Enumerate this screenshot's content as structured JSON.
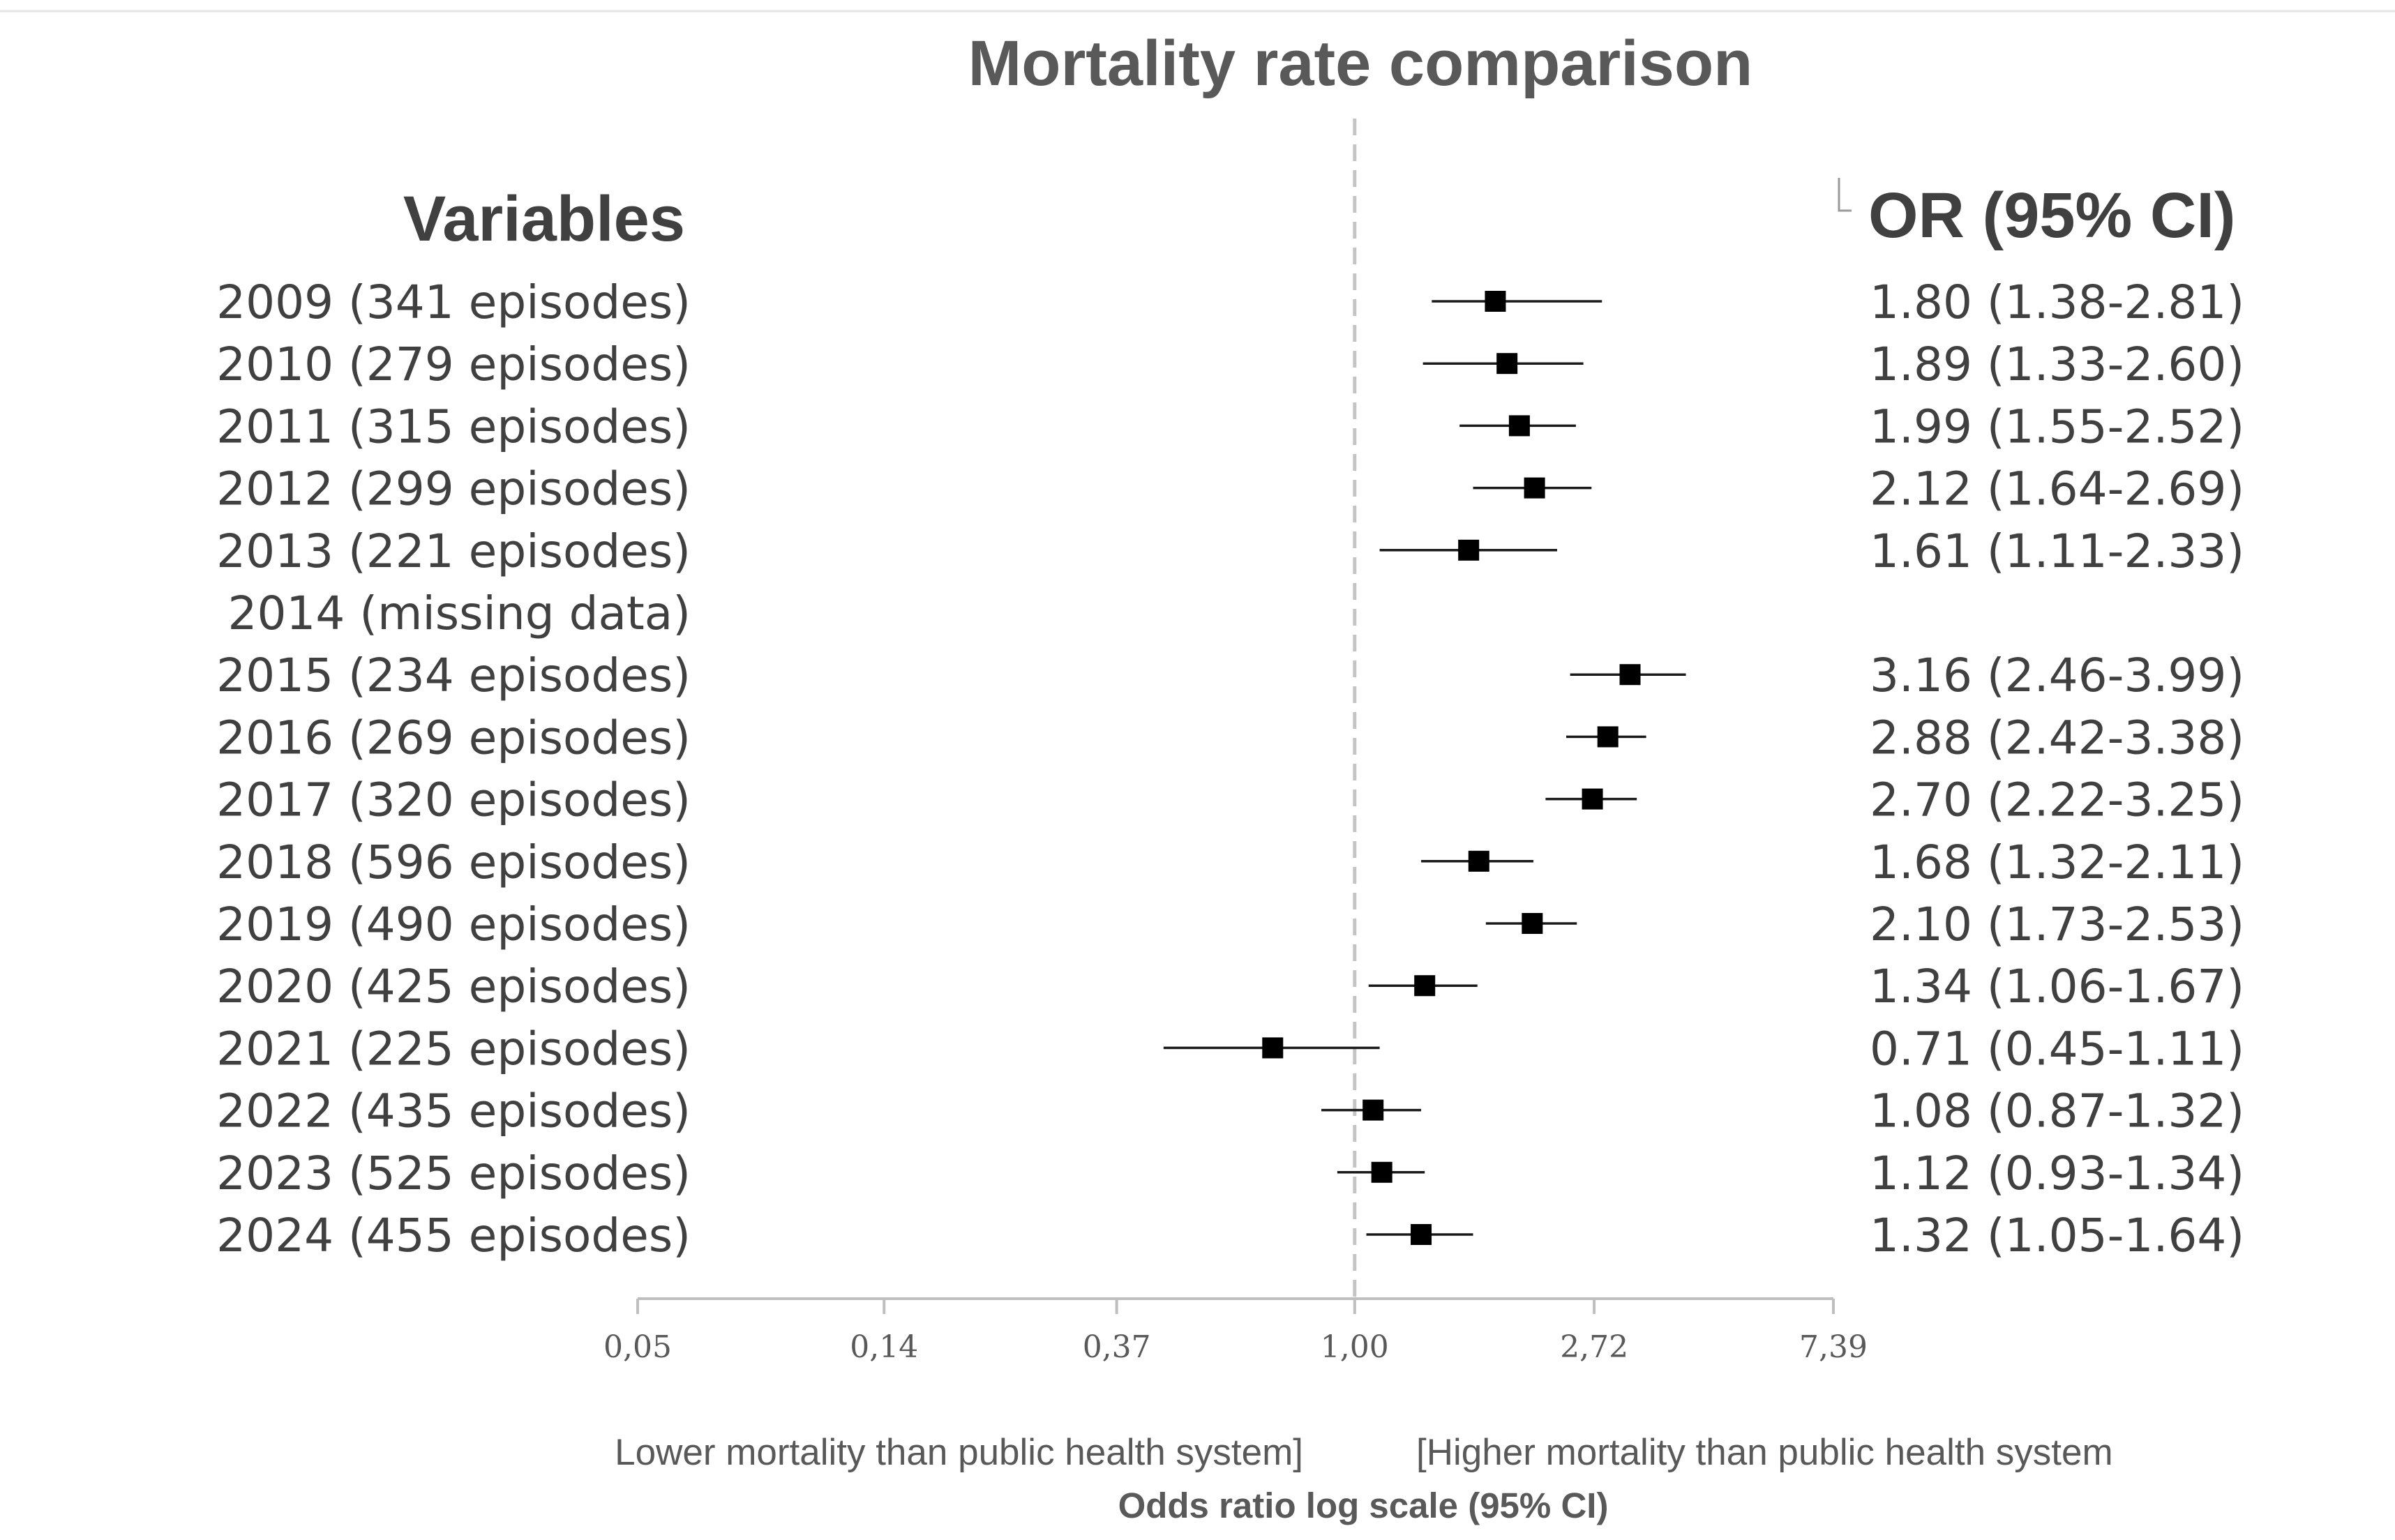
{
  "chart_data": {
    "type": "forest",
    "title": "Mortality rate comparison",
    "left_header": "Variables",
    "right_header": "OR (95% CI)",
    "xlabel": "Odds ratio log scale (95% CI)",
    "x_scale": "log",
    "xlim": [
      0.05,
      7.39
    ],
    "reference_line": 1.0,
    "x_ticks": [
      "0,05",
      "0,14",
      "0,37",
      "1,00",
      "2,72",
      "7,39"
    ],
    "x_tick_values": [
      0.05,
      0.14,
      0.37,
      1.0,
      2.72,
      7.39
    ],
    "left_annotation": "Lower mortality than public health system]",
    "right_annotation": "[Higher mortality than public health system",
    "rows": [
      {
        "label": "2009 (341 episodes)",
        "or": 1.8,
        "lo": 1.38,
        "hi": 2.81,
        "text": "1.80 (1.38-2.81)"
      },
      {
        "label": "2010 (279 episodes)",
        "or": 1.89,
        "lo": 1.33,
        "hi": 2.6,
        "text": "1.89 (1.33-2.60)"
      },
      {
        "label": "2011 (315 episodes)",
        "or": 1.99,
        "lo": 1.55,
        "hi": 2.52,
        "text": "1.99 (1.55-2.52)"
      },
      {
        "label": "2012 (299 episodes)",
        "or": 2.12,
        "lo": 1.64,
        "hi": 2.69,
        "text": "2.12 (1.64-2.69)"
      },
      {
        "label": "2013 (221 episodes)",
        "or": 1.61,
        "lo": 1.11,
        "hi": 2.33,
        "text": "1.61 (1.11-2.33)"
      },
      {
        "label": "2014 (missing data)",
        "or": null,
        "lo": null,
        "hi": null,
        "text": ""
      },
      {
        "label": "2015 (234 episodes)",
        "or": 3.16,
        "lo": 2.46,
        "hi": 3.99,
        "text": "3.16 (2.46-3.99)"
      },
      {
        "label": "2016 (269 episodes)",
        "or": 2.88,
        "lo": 2.42,
        "hi": 3.38,
        "text": "2.88 (2.42-3.38)"
      },
      {
        "label": "2017 (320 episodes)",
        "or": 2.7,
        "lo": 2.22,
        "hi": 3.25,
        "text": "2.70 (2.22-3.25)"
      },
      {
        "label": "2018 (596 episodes)",
        "or": 1.68,
        "lo": 1.32,
        "hi": 2.11,
        "text": "1.68 (1.32-2.11)"
      },
      {
        "label": "2019 (490 episodes)",
        "or": 2.1,
        "lo": 1.73,
        "hi": 2.53,
        "text": "2.10 (1.73-2.53)"
      },
      {
        "label": "2020 (425 episodes)",
        "or": 1.34,
        "lo": 1.06,
        "hi": 1.67,
        "text": "1.34 (1.06-1.67)"
      },
      {
        "label": "2021 (225 episodes)",
        "or": 0.71,
        "lo": 0.45,
        "hi": 1.11,
        "text": "0.71 (0.45-1.11)"
      },
      {
        "label": "2022 (435 episodes)",
        "or": 1.08,
        "lo": 0.87,
        "hi": 1.32,
        "text": "1.08 (0.87-1.32)"
      },
      {
        "label": "2023 (525 episodes)",
        "or": 1.12,
        "lo": 0.93,
        "hi": 1.34,
        "text": "1.12 (0.93-1.34)"
      },
      {
        "label": "2024 (455 episodes)",
        "or": 1.32,
        "lo": 1.05,
        "hi": 1.64,
        "text": "1.32 (1.05-1.64)"
      }
    ]
  }
}
